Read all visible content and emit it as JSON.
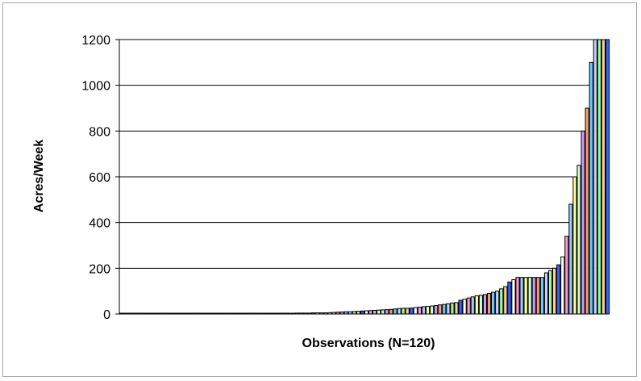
{
  "chart_data": {
    "type": "bar",
    "title": "",
    "xlabel": "Observations (N=120)",
    "ylabel": "Acres/Week",
    "ylim": [
      0,
      1200
    ],
    "yticks": [
      0,
      200,
      400,
      600,
      800,
      1000,
      1200
    ],
    "grid": true,
    "legend": "none",
    "values": [
      0,
      0,
      0,
      0,
      0,
      0,
      0,
      0,
      0,
      0,
      0,
      0,
      0,
      0,
      0,
      0,
      0,
      0,
      0,
      0,
      1,
      1,
      1,
      1,
      1,
      1,
      1,
      1,
      1,
      1,
      2,
      2,
      2,
      2,
      2,
      2,
      2,
      2,
      2,
      3,
      3,
      3,
      3,
      4,
      4,
      4,
      4,
      5,
      5,
      5,
      5,
      6,
      7,
      8,
      9,
      10,
      10,
      11,
      12,
      13,
      14,
      15,
      16,
      17,
      18,
      19,
      20,
      22,
      24,
      25,
      25,
      26,
      28,
      30,
      32,
      33,
      35,
      37,
      40,
      42,
      45,
      48,
      50,
      60,
      65,
      70,
      75,
      80,
      82,
      85,
      90,
      95,
      100,
      110,
      120,
      140,
      150,
      160,
      160,
      160,
      160,
      160,
      160,
      160,
      180,
      190,
      200,
      215,
      250,
      340,
      480,
      600,
      650,
      800,
      900,
      1100,
      1200,
      1200,
      1200,
      1200
    ],
    "bar_colors": [
      "#ffffff",
      "#ff99cc",
      "#99ccff",
      "#ffff99",
      "#ccffcc",
      "#cc99ff",
      "#ff9966",
      "#66ccff",
      "#ccccff",
      "#99ff99",
      "#ffcc99",
      "#3366ff"
    ]
  }
}
